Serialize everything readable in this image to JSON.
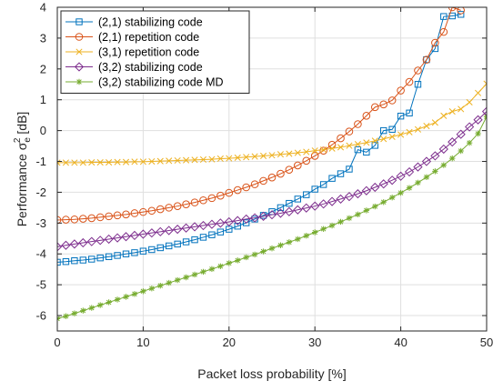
{
  "chart_data": {
    "type": "line",
    "xlabel": "Packet loss probability [%]",
    "ylabel_parts": [
      "Performance ",
      "σ",
      "e",
      "2",
      " [dB]"
    ],
    "xlim": [
      0,
      50
    ],
    "ylim": [
      -6.5,
      4
    ],
    "xticks": [
      0,
      10,
      20,
      30,
      40,
      50
    ],
    "yticks": [
      -6,
      -5,
      -4,
      -3,
      -2,
      -1,
      0,
      1,
      2,
      3,
      4
    ],
    "xtick_labels": [
      "0",
      "10",
      "20",
      "30",
      "40",
      "50"
    ],
    "ytick_labels": [
      "-6",
      "-5",
      "-4",
      "-3",
      "-2",
      "-1",
      "0",
      "1",
      "2",
      "3",
      "4"
    ],
    "grid": true,
    "legend_position": "top-left",
    "series": [
      {
        "name": "(2,1) stabilizing code",
        "color": "#0072BD",
        "marker": "square",
        "x": [
          0,
          1,
          2,
          3,
          4,
          5,
          6,
          7,
          8,
          9,
          10,
          11,
          12,
          13,
          14,
          15,
          16,
          17,
          18,
          19,
          20,
          21,
          22,
          23,
          24,
          25,
          26,
          27,
          28,
          29,
          30,
          31,
          32,
          33,
          34,
          35,
          36,
          37,
          38,
          39,
          40,
          41,
          42,
          43,
          44,
          45,
          46,
          47
        ],
        "y": [
          -4.27,
          -4.25,
          -4.22,
          -4.2,
          -4.17,
          -4.13,
          -4.09,
          -4.05,
          -4.0,
          -3.96,
          -3.91,
          -3.86,
          -3.8,
          -3.74,
          -3.68,
          -3.61,
          -3.54,
          -3.46,
          -3.38,
          -3.29,
          -3.2,
          -3.1,
          -2.99,
          -2.87,
          -2.75,
          -2.63,
          -2.5,
          -2.36,
          -2.22,
          -2.08,
          -1.9,
          -1.75,
          -1.55,
          -1.4,
          -1.25,
          -0.62,
          -0.7,
          -0.48,
          0.0,
          0.04,
          0.47,
          0.57,
          1.5,
          2.3,
          2.66,
          3.7,
          3.72,
          3.77
        ]
      },
      {
        "name": "(2,1) repetition code",
        "color": "#D95319",
        "marker": "circle",
        "x": [
          0,
          1,
          2,
          3,
          4,
          5,
          6,
          7,
          8,
          9,
          10,
          11,
          12,
          13,
          14,
          15,
          16,
          17,
          18,
          19,
          20,
          21,
          22,
          23,
          24,
          25,
          26,
          27,
          28,
          29,
          30,
          31,
          32,
          33,
          34,
          35,
          36,
          37,
          38,
          39,
          40,
          41,
          42,
          43,
          44,
          45,
          46,
          47
        ],
        "y": [
          -2.9,
          -2.89,
          -2.88,
          -2.86,
          -2.84,
          -2.81,
          -2.78,
          -2.75,
          -2.72,
          -2.68,
          -2.64,
          -2.6,
          -2.55,
          -2.5,
          -2.45,
          -2.39,
          -2.33,
          -2.26,
          -2.19,
          -2.11,
          -2.02,
          -1.93,
          -1.84,
          -1.74,
          -1.63,
          -1.52,
          -1.4,
          -1.27,
          -1.13,
          -0.98,
          -0.82,
          -0.65,
          -0.46,
          -0.25,
          -0.03,
          0.21,
          0.48,
          0.76,
          0.85,
          0.98,
          1.3,
          1.58,
          1.95,
          2.3,
          2.85,
          3.2,
          4.0,
          3.9
        ]
      },
      {
        "name": "(3,1) repetition code",
        "color": "#EDB120",
        "marker": "x",
        "x": [
          0,
          1,
          2,
          3,
          4,
          5,
          6,
          7,
          8,
          9,
          10,
          11,
          12,
          13,
          14,
          15,
          16,
          17,
          18,
          19,
          20,
          21,
          22,
          23,
          24,
          25,
          26,
          27,
          28,
          29,
          30,
          31,
          32,
          33,
          34,
          35,
          36,
          37,
          38,
          39,
          40,
          41,
          42,
          43,
          44,
          45,
          46,
          47,
          48,
          49,
          50
        ],
        "y": [
          -1.04,
          -1.04,
          -1.04,
          -1.04,
          -1.03,
          -1.03,
          -1.03,
          -1.02,
          -1.02,
          -1.01,
          -1.01,
          -1.0,
          -0.99,
          -0.98,
          -0.97,
          -0.96,
          -0.95,
          -0.94,
          -0.93,
          -0.91,
          -0.9,
          -0.88,
          -0.86,
          -0.84,
          -0.82,
          -0.8,
          -0.77,
          -0.75,
          -0.72,
          -0.69,
          -0.65,
          -0.62,
          -0.58,
          -0.54,
          -0.49,
          -0.44,
          -0.39,
          -0.33,
          -0.27,
          -0.2,
          -0.13,
          -0.05,
          0.04,
          0.15,
          0.26,
          0.48,
          0.62,
          0.7,
          0.92,
          1.22,
          1.52
        ]
      },
      {
        "name": "(3,2) stabilizing code",
        "color": "#7E2F8E",
        "marker": "diamond",
        "x": [
          0,
          1,
          2,
          3,
          4,
          5,
          6,
          7,
          8,
          9,
          10,
          11,
          12,
          13,
          14,
          15,
          16,
          17,
          18,
          19,
          20,
          21,
          22,
          23,
          24,
          25,
          26,
          27,
          28,
          29,
          30,
          31,
          32,
          33,
          34,
          35,
          36,
          37,
          38,
          39,
          40,
          41,
          42,
          43,
          44,
          45,
          46,
          47,
          48,
          49,
          50
        ],
        "y": [
          -3.77,
          -3.72,
          -3.68,
          -3.64,
          -3.6,
          -3.56,
          -3.52,
          -3.48,
          -3.44,
          -3.4,
          -3.36,
          -3.32,
          -3.28,
          -3.24,
          -3.2,
          -3.16,
          -3.12,
          -3.08,
          -3.04,
          -3.0,
          -2.96,
          -2.92,
          -2.87,
          -2.83,
          -2.78,
          -2.73,
          -2.68,
          -2.63,
          -2.57,
          -2.51,
          -2.45,
          -2.38,
          -2.3,
          -2.22,
          -2.14,
          -2.05,
          -1.95,
          -1.84,
          -1.73,
          -1.61,
          -1.48,
          -1.34,
          -1.18,
          -1.0,
          -0.82,
          -0.6,
          -0.37,
          -0.12,
          0.12,
          0.35,
          0.62
        ]
      },
      {
        "name": "(3,2) stabilizing code MD",
        "color": "#77AC30",
        "marker": "asterisk",
        "x": [
          0,
          1,
          2,
          3,
          4,
          5,
          6,
          7,
          8,
          9,
          10,
          11,
          12,
          13,
          14,
          15,
          16,
          17,
          18,
          19,
          20,
          21,
          22,
          23,
          24,
          25,
          26,
          27,
          28,
          29,
          30,
          31,
          32,
          33,
          34,
          35,
          36,
          37,
          38,
          39,
          40,
          41,
          42,
          43,
          44,
          45,
          46,
          47,
          48,
          49,
          50
        ],
        "y": [
          -6.1,
          -6.02,
          -5.93,
          -5.84,
          -5.75,
          -5.66,
          -5.57,
          -5.48,
          -5.39,
          -5.3,
          -5.21,
          -5.12,
          -5.03,
          -4.94,
          -4.85,
          -4.76,
          -4.67,
          -4.58,
          -4.49,
          -4.4,
          -4.3,
          -4.21,
          -4.11,
          -4.02,
          -3.92,
          -3.82,
          -3.72,
          -3.62,
          -3.52,
          -3.41,
          -3.3,
          -3.19,
          -3.08,
          -2.96,
          -2.84,
          -2.72,
          -2.59,
          -2.46,
          -2.32,
          -2.17,
          -2.02,
          -1.86,
          -1.69,
          -1.51,
          -1.32,
          -1.12,
          -0.9,
          -0.66,
          -0.4,
          -0.1,
          0.45
        ]
      }
    ]
  }
}
